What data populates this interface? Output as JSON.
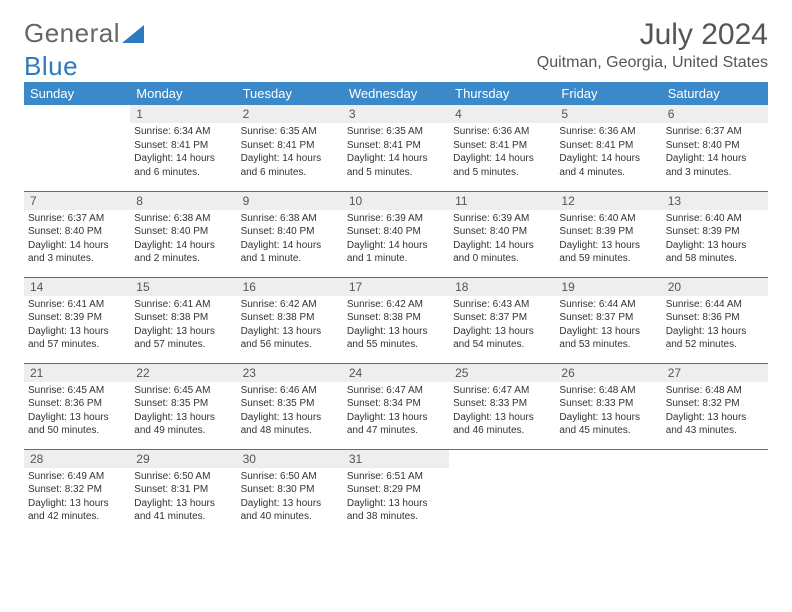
{
  "brand": {
    "part1": "General",
    "part2": "Blue"
  },
  "title": "July 2024",
  "location": "Quitman, Georgia, United States",
  "dayHeaders": [
    "Sunday",
    "Monday",
    "Tuesday",
    "Wednesday",
    "Thursday",
    "Friday",
    "Saturday"
  ],
  "colors": {
    "headerBg": "#3b89c9",
    "headerText": "#ffffff",
    "dayNumBg": "#eeeeee",
    "ruleColor": "#2e7ac0",
    "textColor": "#333333"
  },
  "weeks": [
    [
      null,
      {
        "n": "1",
        "sr": "Sunrise: 6:34 AM",
        "ss": "Sunset: 8:41 PM",
        "dl": "Daylight: 14 hours and 6 minutes."
      },
      {
        "n": "2",
        "sr": "Sunrise: 6:35 AM",
        "ss": "Sunset: 8:41 PM",
        "dl": "Daylight: 14 hours and 6 minutes."
      },
      {
        "n": "3",
        "sr": "Sunrise: 6:35 AM",
        "ss": "Sunset: 8:41 PM",
        "dl": "Daylight: 14 hours and 5 minutes."
      },
      {
        "n": "4",
        "sr": "Sunrise: 6:36 AM",
        "ss": "Sunset: 8:41 PM",
        "dl": "Daylight: 14 hours and 5 minutes."
      },
      {
        "n": "5",
        "sr": "Sunrise: 6:36 AM",
        "ss": "Sunset: 8:41 PM",
        "dl": "Daylight: 14 hours and 4 minutes."
      },
      {
        "n": "6",
        "sr": "Sunrise: 6:37 AM",
        "ss": "Sunset: 8:40 PM",
        "dl": "Daylight: 14 hours and 3 minutes."
      }
    ],
    [
      {
        "n": "7",
        "sr": "Sunrise: 6:37 AM",
        "ss": "Sunset: 8:40 PM",
        "dl": "Daylight: 14 hours and 3 minutes."
      },
      {
        "n": "8",
        "sr": "Sunrise: 6:38 AM",
        "ss": "Sunset: 8:40 PM",
        "dl": "Daylight: 14 hours and 2 minutes."
      },
      {
        "n": "9",
        "sr": "Sunrise: 6:38 AM",
        "ss": "Sunset: 8:40 PM",
        "dl": "Daylight: 14 hours and 1 minute."
      },
      {
        "n": "10",
        "sr": "Sunrise: 6:39 AM",
        "ss": "Sunset: 8:40 PM",
        "dl": "Daylight: 14 hours and 1 minute."
      },
      {
        "n": "11",
        "sr": "Sunrise: 6:39 AM",
        "ss": "Sunset: 8:40 PM",
        "dl": "Daylight: 14 hours and 0 minutes."
      },
      {
        "n": "12",
        "sr": "Sunrise: 6:40 AM",
        "ss": "Sunset: 8:39 PM",
        "dl": "Daylight: 13 hours and 59 minutes."
      },
      {
        "n": "13",
        "sr": "Sunrise: 6:40 AM",
        "ss": "Sunset: 8:39 PM",
        "dl": "Daylight: 13 hours and 58 minutes."
      }
    ],
    [
      {
        "n": "14",
        "sr": "Sunrise: 6:41 AM",
        "ss": "Sunset: 8:39 PM",
        "dl": "Daylight: 13 hours and 57 minutes."
      },
      {
        "n": "15",
        "sr": "Sunrise: 6:41 AM",
        "ss": "Sunset: 8:38 PM",
        "dl": "Daylight: 13 hours and 57 minutes."
      },
      {
        "n": "16",
        "sr": "Sunrise: 6:42 AM",
        "ss": "Sunset: 8:38 PM",
        "dl": "Daylight: 13 hours and 56 minutes."
      },
      {
        "n": "17",
        "sr": "Sunrise: 6:42 AM",
        "ss": "Sunset: 8:38 PM",
        "dl": "Daylight: 13 hours and 55 minutes."
      },
      {
        "n": "18",
        "sr": "Sunrise: 6:43 AM",
        "ss": "Sunset: 8:37 PM",
        "dl": "Daylight: 13 hours and 54 minutes."
      },
      {
        "n": "19",
        "sr": "Sunrise: 6:44 AM",
        "ss": "Sunset: 8:37 PM",
        "dl": "Daylight: 13 hours and 53 minutes."
      },
      {
        "n": "20",
        "sr": "Sunrise: 6:44 AM",
        "ss": "Sunset: 8:36 PM",
        "dl": "Daylight: 13 hours and 52 minutes."
      }
    ],
    [
      {
        "n": "21",
        "sr": "Sunrise: 6:45 AM",
        "ss": "Sunset: 8:36 PM",
        "dl": "Daylight: 13 hours and 50 minutes."
      },
      {
        "n": "22",
        "sr": "Sunrise: 6:45 AM",
        "ss": "Sunset: 8:35 PM",
        "dl": "Daylight: 13 hours and 49 minutes."
      },
      {
        "n": "23",
        "sr": "Sunrise: 6:46 AM",
        "ss": "Sunset: 8:35 PM",
        "dl": "Daylight: 13 hours and 48 minutes."
      },
      {
        "n": "24",
        "sr": "Sunrise: 6:47 AM",
        "ss": "Sunset: 8:34 PM",
        "dl": "Daylight: 13 hours and 47 minutes."
      },
      {
        "n": "25",
        "sr": "Sunrise: 6:47 AM",
        "ss": "Sunset: 8:33 PM",
        "dl": "Daylight: 13 hours and 46 minutes."
      },
      {
        "n": "26",
        "sr": "Sunrise: 6:48 AM",
        "ss": "Sunset: 8:33 PM",
        "dl": "Daylight: 13 hours and 45 minutes."
      },
      {
        "n": "27",
        "sr": "Sunrise: 6:48 AM",
        "ss": "Sunset: 8:32 PM",
        "dl": "Daylight: 13 hours and 43 minutes."
      }
    ],
    [
      {
        "n": "28",
        "sr": "Sunrise: 6:49 AM",
        "ss": "Sunset: 8:32 PM",
        "dl": "Daylight: 13 hours and 42 minutes."
      },
      {
        "n": "29",
        "sr": "Sunrise: 6:50 AM",
        "ss": "Sunset: 8:31 PM",
        "dl": "Daylight: 13 hours and 41 minutes."
      },
      {
        "n": "30",
        "sr": "Sunrise: 6:50 AM",
        "ss": "Sunset: 8:30 PM",
        "dl": "Daylight: 13 hours and 40 minutes."
      },
      {
        "n": "31",
        "sr": "Sunrise: 6:51 AM",
        "ss": "Sunset: 8:29 PM",
        "dl": "Daylight: 13 hours and 38 minutes."
      },
      null,
      null,
      null
    ]
  ]
}
